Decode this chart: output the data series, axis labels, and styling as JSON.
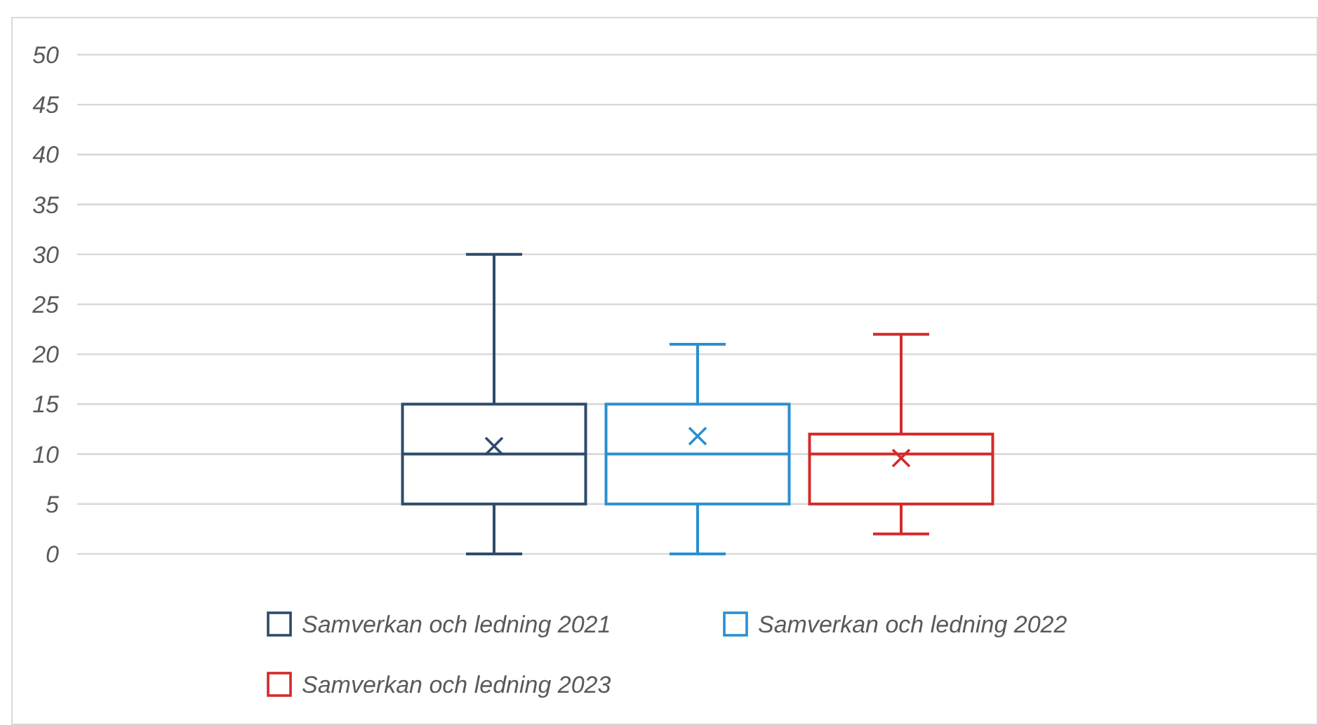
{
  "chart_data": {
    "type": "box",
    "categories": [
      null
    ],
    "series": [
      {
        "name": "Samverkan och ledning 2021",
        "color": "#2e4a6b",
        "boxes": [
          {
            "low": 0,
            "q1": 5,
            "median": 10,
            "q3": 15,
            "high": 30,
            "mean": 10.8
          }
        ]
      },
      {
        "name": "Samverkan och ledning 2022",
        "color": "#2b8fd0",
        "boxes": [
          {
            "low": 0,
            "q1": 5,
            "median": 10,
            "q3": 15,
            "high": 21,
            "mean": 11.8
          }
        ]
      },
      {
        "name": "Samverkan och ledning 2023",
        "color": "#d42a2a",
        "boxes": [
          {
            "low": 2,
            "q1": 5,
            "median": 10,
            "q3": 12,
            "high": 22,
            "mean": 9.6
          }
        ]
      }
    ],
    "ylim": [
      0,
      50
    ],
    "yticks": [
      0,
      5,
      10,
      15,
      20,
      25,
      30,
      35,
      40,
      45,
      50
    ],
    "grid": "y",
    "legend": "bottom",
    "marker": "cross"
  }
}
